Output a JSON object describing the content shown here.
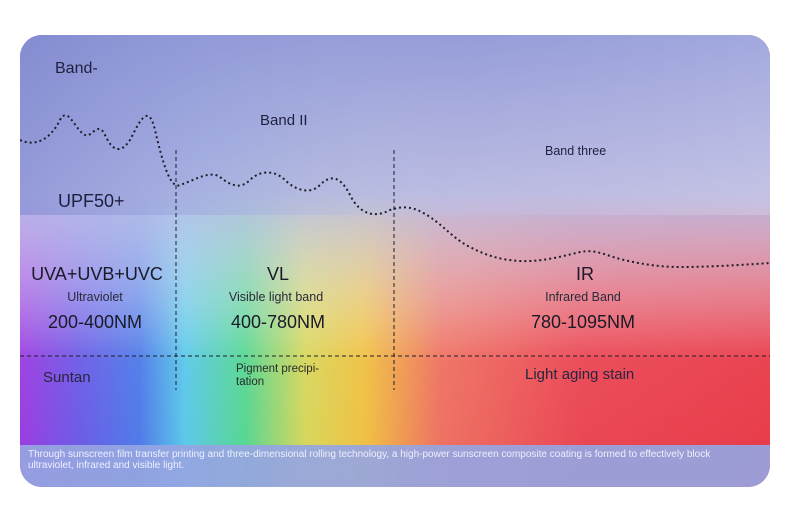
{
  "bands": {
    "band1_label": "Band-",
    "band2_label": "Band II",
    "band3_label": "Band three"
  },
  "upf_label": "UPF50+",
  "columns": [
    {
      "abbr": "UVA+UVB+UVC",
      "name": "Ultraviolet",
      "range": "200-400NM",
      "effect": "Suntan"
    },
    {
      "abbr": "VL",
      "name": "Visible light band",
      "range": "400-780NM",
      "effect": "Pigment precipi-tation"
    },
    {
      "abbr": "IR",
      "name": "Infrared Band",
      "range": "780-1095NM",
      "effect": "Light aging stain"
    }
  ],
  "footer_text": "Through sunscreen film transfer printing and three-dimensional rolling technology, a high-power sunscreen composite coating is formed to effectively block ultraviolet, infrared and visible light.",
  "colors": {
    "top_gradient": "#8b96d8",
    "ultraviolet": "#8a3ee0",
    "visible_green": "#4fd07a",
    "visible_yellow": "#e9d64a",
    "infrared_red": "#e8404e",
    "footer_bg": "#96a5e1"
  }
}
